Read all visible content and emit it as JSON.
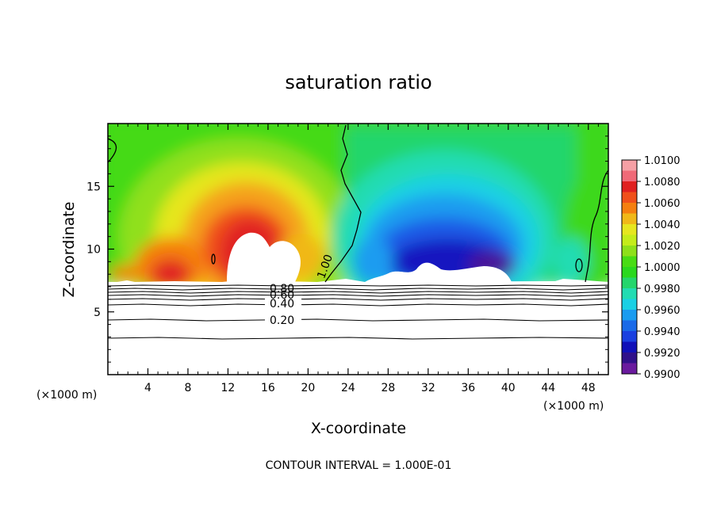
{
  "chart_data": {
    "type": "heatmap",
    "title": "saturation ratio",
    "xlabel": "X-coordinate",
    "ylabel": "Z-coordinate",
    "x_unit_left": "(×1000 m)",
    "x_unit_right": "(×1000 m)",
    "footer": "CONTOUR INTERVAL = 1.000E-01",
    "xlim": [
      0,
      50
    ],
    "ylim": [
      0,
      20
    ],
    "x_ticks": [
      4,
      8,
      12,
      16,
      20,
      24,
      28,
      32,
      36,
      40,
      44,
      48
    ],
    "x_tick_labels": [
      "4",
      "8",
      "12",
      "16",
      "20",
      "24",
      "28",
      "32",
      "36",
      "40",
      "44",
      "48"
    ],
    "y_ticks": [
      5,
      10,
      15
    ],
    "y_tick_labels": [
      "5",
      "10",
      "15"
    ],
    "colorbar": {
      "labels": [
        "1.0100",
        "1.0080",
        "1.0060",
        "1.0040",
        "1.0020",
        "1.0000",
        "0.9980",
        "0.9960",
        "0.9940",
        "0.9920",
        "0.9900"
      ],
      "colors": [
        "#f5a0a5",
        "#f06a78",
        "#e02020",
        "#f0501a",
        "#f57f0f",
        "#f0b818",
        "#e6e61f",
        "#c4ec1a",
        "#8ee01a",
        "#48dc14",
        "#2ad81e",
        "#24d66c",
        "#22dcb2",
        "#1ad0e4",
        "#1a9cf0",
        "#1a6ae8",
        "#1a40e0",
        "#1010b8",
        "#30108a",
        "#6a1a9e"
      ]
    },
    "cloud_base_km": 7.3,
    "contours": [
      {
        "label": "1.00",
        "x": 21.5,
        "y": 8.3
      },
      {
        "label": "0.80",
        "x": 17.8,
        "y": 7.1
      },
      {
        "label": "0.60",
        "x": 17.8,
        "y": 6.6
      },
      {
        "label": "0.40",
        "x": 17.8,
        "y": 5.6
      },
      {
        "label": "0.20",
        "x": 17.8,
        "y": 4.4
      }
    ],
    "contour_levels_y": [
      7.2,
      6.9,
      6.6,
      6.4,
      6.1,
      5.8,
      5.4,
      4.4,
      2.9
    ],
    "saturated_region": {
      "x": [
        0,
        21.5
      ],
      "peak_ratio": 1.01
    },
    "subsaturated_region": {
      "x": [
        22.5,
        50
      ],
      "min_ratio": 0.99
    }
  }
}
